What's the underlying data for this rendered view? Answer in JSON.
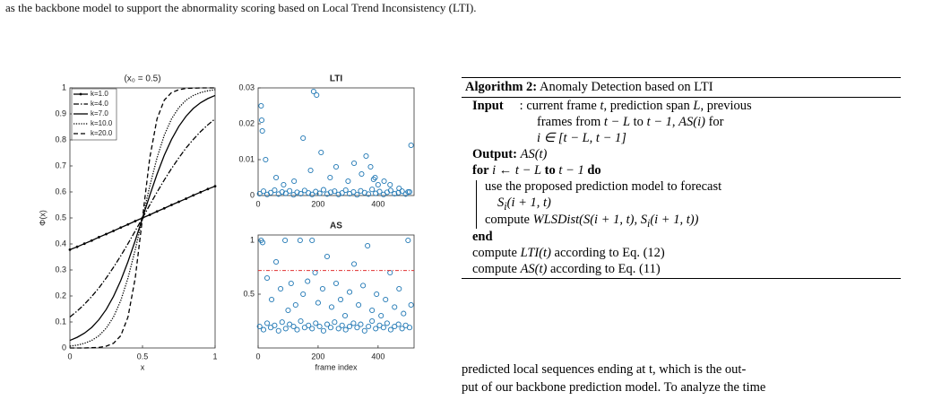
{
  "header": {
    "text": "as the backbone model to support the abnormality scoring based on Local Trend Inconsistency (LTI)."
  },
  "chart_data": [
    {
      "type": "line",
      "title": "(x₀ = 0.5)",
      "x_label": "x",
      "y_label": "Φ(x)",
      "x": [
        0,
        0.05,
        0.1,
        0.15,
        0.2,
        0.25,
        0.3,
        0.35,
        0.4,
        0.45,
        0.5,
        0.55,
        0.6,
        0.65,
        0.7,
        0.75,
        0.8,
        0.85,
        0.9,
        0.95,
        1
      ],
      "series": [
        {
          "name": "k=1.0",
          "color": "#000000",
          "line_style": "solid-dot",
          "values": [
            0.378,
            0.389,
            0.401,
            0.413,
            0.426,
            0.438,
            0.45,
            0.463,
            0.475,
            0.488,
            0.5,
            0.512,
            0.525,
            0.537,
            0.55,
            0.562,
            0.574,
            0.587,
            0.599,
            0.611,
            0.622
          ]
        },
        {
          "name": "k=4.0",
          "color": "#000000",
          "line_style": "dash-dot",
          "values": [
            0.119,
            0.142,
            0.168,
            0.198,
            0.231,
            0.269,
            0.31,
            0.354,
            0.401,
            0.45,
            0.5,
            0.55,
            0.599,
            0.646,
            0.69,
            0.731,
            0.769,
            0.802,
            0.832,
            0.858,
            0.881
          ]
        },
        {
          "name": "k=7.0",
          "color": "#000000",
          "line_style": "solid",
          "values": [
            0.029,
            0.041,
            0.057,
            0.079,
            0.109,
            0.148,
            0.198,
            0.259,
            0.332,
            0.413,
            0.5,
            0.587,
            0.668,
            0.741,
            0.802,
            0.852,
            0.891,
            0.921,
            0.943,
            0.959,
            0.971
          ]
        },
        {
          "name": "k=10.0",
          "color": "#000000",
          "line_style": "dotted",
          "values": [
            0.007,
            0.011,
            0.018,
            0.029,
            0.047,
            0.076,
            0.119,
            0.182,
            0.269,
            0.378,
            0.5,
            0.622,
            0.731,
            0.818,
            0.881,
            0.924,
            0.953,
            0.971,
            0.982,
            0.989,
            0.993
          ]
        },
        {
          "name": "k=20.0",
          "color": "#000000",
          "line_style": "dashed",
          "values": [
            0,
            0,
            0,
            0.001,
            0.002,
            0.007,
            0.018,
            0.047,
            0.119,
            0.269,
            0.5,
            0.731,
            0.881,
            0.953,
            0.982,
            0.993,
            0.998,
            0.999,
            1,
            1,
            1
          ]
        }
      ],
      "xlim": [
        0,
        1
      ],
      "ylim": [
        0,
        1
      ],
      "xticks": [
        0,
        0.5,
        1
      ],
      "yticks": [
        0,
        0.1,
        0.2,
        0.3,
        0.4,
        0.5,
        0.6,
        0.7,
        0.8,
        0.9,
        1
      ],
      "legend": "upper left"
    },
    {
      "type": "scatter",
      "title": "LTI",
      "color": "#1f77b4",
      "x": [
        5,
        18,
        30,
        42,
        55,
        68,
        80,
        92,
        105,
        118,
        130,
        142,
        155,
        168,
        180,
        192,
        205,
        218,
        230,
        242,
        255,
        268,
        280,
        292,
        305,
        318,
        330,
        342,
        355,
        368,
        380,
        392,
        405,
        418,
        430,
        442,
        455,
        468,
        480,
        492,
        505,
        10,
        12,
        14,
        25,
        60,
        85,
        120,
        150,
        175,
        185,
        195,
        210,
        240,
        260,
        300,
        320,
        345,
        360,
        375,
        385,
        390,
        400,
        420,
        440,
        470,
        500,
        510
      ],
      "y": [
        0.0005,
        0.0012,
        0.0003,
        0.0008,
        0.0015,
        0.0004,
        0.001,
        0.0006,
        0.0013,
        0.0002,
        0.0009,
        0.0005,
        0.0014,
        0.0007,
        0.0003,
        0.0011,
        0.0006,
        0.0016,
        0.0004,
        0.0009,
        0.0012,
        0.0003,
        0.0007,
        0.0015,
        0.0005,
        0.001,
        0.0002,
        0.0013,
        0.0008,
        0.0004,
        0.0017,
        0.0006,
        0.0011,
        0.0003,
        0.0009,
        0.0014,
        0.0005,
        0.0008,
        0.0012,
        0.0004,
        0.001,
        0.025,
        0.021,
        0.018,
        0.01,
        0.005,
        0.003,
        0.004,
        0.016,
        0.007,
        0.029,
        0.028,
        0.012,
        0.005,
        0.008,
        0.004,
        0.009,
        0.006,
        0.011,
        0.008,
        0.0045,
        0.005,
        0.003,
        0.004,
        0.003,
        0.002,
        0.001,
        0.014
      ],
      "xlim": [
        0,
        520
      ],
      "ylim": [
        0,
        0.03
      ],
      "xticks": [
        0,
        200,
        400
      ],
      "yticks": [
        0,
        0.01,
        0.02,
        0.03
      ]
    },
    {
      "type": "scatter",
      "title": "AS",
      "x_label": "frame index",
      "color": "#1f77b4",
      "threshold": 0.72,
      "threshold_color": "#e03030",
      "x": [
        5,
        18,
        30,
        42,
        55,
        68,
        80,
        92,
        105,
        118,
        130,
        142,
        155,
        168,
        180,
        192,
        205,
        218,
        230,
        242,
        255,
        268,
        280,
        292,
        305,
        318,
        330,
        342,
        355,
        368,
        380,
        392,
        405,
        418,
        430,
        442,
        455,
        468,
        480,
        492,
        505,
        10,
        15,
        30,
        45,
        60,
        75,
        90,
        100,
        110,
        125,
        140,
        150,
        165,
        180,
        190,
        200,
        215,
        230,
        245,
        260,
        275,
        290,
        305,
        320,
        335,
        350,
        365,
        380,
        395,
        410,
        425,
        440,
        455,
        470,
        485,
        500,
        510
      ],
      "y": [
        0.2,
        0.17,
        0.23,
        0.19,
        0.21,
        0.16,
        0.24,
        0.18,
        0.22,
        0.2,
        0.17,
        0.25,
        0.19,
        0.21,
        0.18,
        0.23,
        0.2,
        0.16,
        0.22,
        0.19,
        0.24,
        0.18,
        0.21,
        0.17,
        0.2,
        0.23,
        0.19,
        0.22,
        0.16,
        0.2,
        0.25,
        0.18,
        0.21,
        0.19,
        0.23,
        0.17,
        0.2,
        0.22,
        0.18,
        0.21,
        0.19,
        1.0,
        0.98,
        0.65,
        0.45,
        0.8,
        0.55,
        1.0,
        0.35,
        0.6,
        0.4,
        1.0,
        0.5,
        0.62,
        1.0,
        0.7,
        0.42,
        0.55,
        0.85,
        0.38,
        0.6,
        0.45,
        0.3,
        0.52,
        0.78,
        0.4,
        0.58,
        0.95,
        0.35,
        0.5,
        0.3,
        0.45,
        0.7,
        0.38,
        0.55,
        0.32,
        1.0,
        0.4
      ],
      "xlim": [
        0,
        520
      ],
      "ylim": [
        0,
        1.05
      ],
      "xticks": [
        0,
        200,
        400
      ],
      "yticks": [
        0.5,
        1
      ]
    }
  ],
  "algorithm": {
    "caption": [
      "Algorithm 2:",
      "Anomaly Detection based on LTI"
    ],
    "lines": [
      [
        "Input",
        ":",
        "current frame ",
        "t",
        ", prediction span ",
        "L",
        ", previous"
      ],
      [
        "frames from ",
        "t − L",
        " to ",
        "t − 1",
        ", ",
        "AS(i)",
        " for"
      ],
      [
        "i ∈ [t − L, t − 1]"
      ],
      [
        "Output:",
        "AS(t)"
      ],
      [
        "for",
        "i ← t − L",
        "to",
        "t − 1",
        "do"
      ],
      [
        "use the proposed prediction model to forecast"
      ],
      [
        "S",
        "i",
        "(i + 1, t)"
      ],
      [
        "compute ",
        "WLSDist(S(i + 1, t), S",
        "i",
        "(i + 1, t))"
      ],
      [
        "end"
      ],
      [
        "compute ",
        "LTI(t)",
        " according to Eq. (12)"
      ],
      [
        "compute ",
        "AS(t)",
        " according to Eq. (11)"
      ]
    ]
  },
  "body": {
    "lines": [
      "predicted local sequences ending at t, which is the out-",
      "put of our backbone prediction model. To analyze the time"
    ]
  }
}
